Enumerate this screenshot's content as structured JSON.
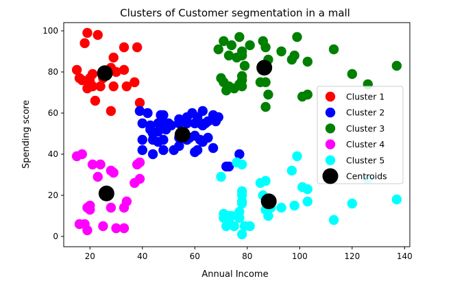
{
  "chart_data": {
    "type": "scatter",
    "title": "Clusters of Customer segmentation in a mall",
    "xlabel": "Annual Income",
    "ylabel": "Spending score",
    "xlim": [
      10,
      142
    ],
    "ylim": [
      -5,
      104
    ],
    "xticks": [
      20,
      40,
      60,
      80,
      100,
      120,
      140
    ],
    "yticks": [
      0,
      20,
      40,
      60,
      80,
      100
    ],
    "grid": false,
    "legend_position": "center-right",
    "series": [
      {
        "name": "Cluster 1",
        "color": "#ff0000",
        "points": [
          [
            15,
            81
          ],
          [
            16,
            77
          ],
          [
            17,
            76
          ],
          [
            18,
            94
          ],
          [
            19,
            72
          ],
          [
            19,
            99
          ],
          [
            20,
            77
          ],
          [
            20,
            75
          ],
          [
            21,
            73
          ],
          [
            21,
            79
          ],
          [
            22,
            66
          ],
          [
            23,
            98
          ],
          [
            24,
            73
          ],
          [
            25,
            77
          ],
          [
            28,
            82
          ],
          [
            28,
            61
          ],
          [
            29,
            87
          ],
          [
            29,
            73
          ],
          [
            30,
            80
          ],
          [
            33,
            81
          ],
          [
            33,
            92
          ],
          [
            34,
            73
          ],
          [
            37,
            75
          ],
          [
            38,
            92
          ],
          [
            39,
            65
          ]
        ]
      },
      {
        "name": "Cluster 2",
        "color": "#0000ff",
        "points": [
          [
            39,
            61
          ],
          [
            40,
            55
          ],
          [
            40,
            47
          ],
          [
            40,
            42
          ],
          [
            42,
            60
          ],
          [
            43,
            52
          ],
          [
            43,
            54
          ],
          [
            44,
            50
          ],
          [
            44,
            47
          ],
          [
            46,
            55
          ],
          [
            46,
            51
          ],
          [
            46,
            46
          ],
          [
            47,
            56
          ],
          [
            47,
            59
          ],
          [
            48,
            55
          ],
          [
            48,
            47
          ],
          [
            48,
            42
          ],
          [
            48,
            59
          ],
          [
            49,
            52
          ],
          [
            50,
            55
          ],
          [
            51,
            54
          ],
          [
            54,
            57
          ],
          [
            54,
            48
          ],
          [
            54,
            55
          ],
          [
            54,
            44
          ],
          [
            55,
            56
          ],
          [
            57,
            58
          ],
          [
            57,
            55
          ],
          [
            57,
            47
          ],
          [
            58,
            48
          ],
          [
            59,
            60
          ],
          [
            60,
            55
          ],
          [
            60,
            41
          ],
          [
            60,
            49
          ],
          [
            61,
            56
          ],
          [
            61,
            42
          ],
          [
            62,
            55
          ],
          [
            62,
            47
          ],
          [
            63,
            54
          ],
          [
            63,
            46
          ],
          [
            64,
            55
          ],
          [
            65,
            48
          ],
          [
            65,
            56
          ],
          [
            67,
            59
          ],
          [
            68,
            56
          ],
          [
            69,
            58
          ],
          [
            72,
            34
          ],
          [
            73,
            34
          ],
          [
            77,
            40
          ],
          [
            44,
            40
          ],
          [
            52,
            42
          ],
          [
            61,
            58
          ],
          [
            63,
            61
          ],
          [
            67,
            43
          ]
        ]
      },
      {
        "name": "Cluster 3",
        "color": "#008000",
        "points": [
          [
            69,
            91
          ],
          [
            70,
            77
          ],
          [
            71,
            95
          ],
          [
            71,
            75
          ],
          [
            72,
            71
          ],
          [
            73,
            88
          ],
          [
            73,
            73
          ],
          [
            74,
            93
          ],
          [
            75,
            72
          ],
          [
            76,
            87
          ],
          [
            77,
            97
          ],
          [
            77,
            74
          ],
          [
            78,
            90
          ],
          [
            78,
            76
          ],
          [
            78,
            88
          ],
          [
            78,
            73
          ],
          [
            78,
            78
          ],
          [
            79,
            83
          ],
          [
            81,
            93
          ],
          [
            85,
            75
          ],
          [
            86,
            95
          ],
          [
            87,
            63
          ],
          [
            87,
            75
          ],
          [
            87,
            92
          ],
          [
            88,
            86
          ],
          [
            88,
            69
          ],
          [
            93,
            90
          ],
          [
            97,
            86
          ],
          [
            98,
            88
          ],
          [
            99,
            97
          ],
          [
            101,
            68
          ],
          [
            103,
            85
          ],
          [
            103,
            69
          ],
          [
            113,
            91
          ],
          [
            120,
            79
          ],
          [
            126,
            74
          ],
          [
            137,
            83
          ]
        ]
      },
      {
        "name": "Cluster 4",
        "color": "#ff00ff",
        "points": [
          [
            15,
            39
          ],
          [
            16,
            6
          ],
          [
            17,
            40
          ],
          [
            18,
            6
          ],
          [
            19,
            3
          ],
          [
            19,
            14
          ],
          [
            20,
            15
          ],
          [
            20,
            13
          ],
          [
            21,
            35
          ],
          [
            23,
            29
          ],
          [
            24,
            35
          ],
          [
            25,
            5
          ],
          [
            28,
            14
          ],
          [
            28,
            32
          ],
          [
            29,
            31
          ],
          [
            30,
            4
          ],
          [
            33,
            4
          ],
          [
            33,
            14
          ],
          [
            34,
            17
          ],
          [
            37,
            26
          ],
          [
            38,
            35
          ],
          [
            39,
            36
          ],
          [
            39,
            28
          ]
        ]
      },
      {
        "name": "Cluster 5",
        "color": "#00ffff",
        "points": [
          [
            70,
            29
          ],
          [
            71,
            11
          ],
          [
            71,
            9
          ],
          [
            72,
            5
          ],
          [
            73,
            7
          ],
          [
            73,
            10
          ],
          [
            74,
            10
          ],
          [
            75,
            5
          ],
          [
            76,
            36
          ],
          [
            77,
            12
          ],
          [
            77,
            9
          ],
          [
            78,
            22
          ],
          [
            78,
            17
          ],
          [
            78,
            20
          ],
          [
            78,
            16
          ],
          [
            78,
            1
          ],
          [
            78,
            35
          ],
          [
            79,
            5
          ],
          [
            81,
            5
          ],
          [
            85,
            26
          ],
          [
            86,
            20
          ],
          [
            87,
            27
          ],
          [
            87,
            13
          ],
          [
            88,
            10
          ],
          [
            88,
            15
          ],
          [
            89,
            14
          ],
          [
            93,
            14
          ],
          [
            97,
            32
          ],
          [
            98,
            15
          ],
          [
            99,
            39
          ],
          [
            101,
            24
          ],
          [
            103,
            17
          ],
          [
            103,
            23
          ],
          [
            113,
            8
          ],
          [
            120,
            16
          ],
          [
            126,
            28
          ],
          [
            137,
            18
          ]
        ]
      },
      {
        "name": "Centroids",
        "color": "#000000",
        "points": [
          [
            25.7,
            79.4
          ],
          [
            55.3,
            49.5
          ],
          [
            86.5,
            82.1
          ],
          [
            26.3,
            20.9
          ],
          [
            88.2,
            17.1
          ]
        ]
      }
    ]
  }
}
